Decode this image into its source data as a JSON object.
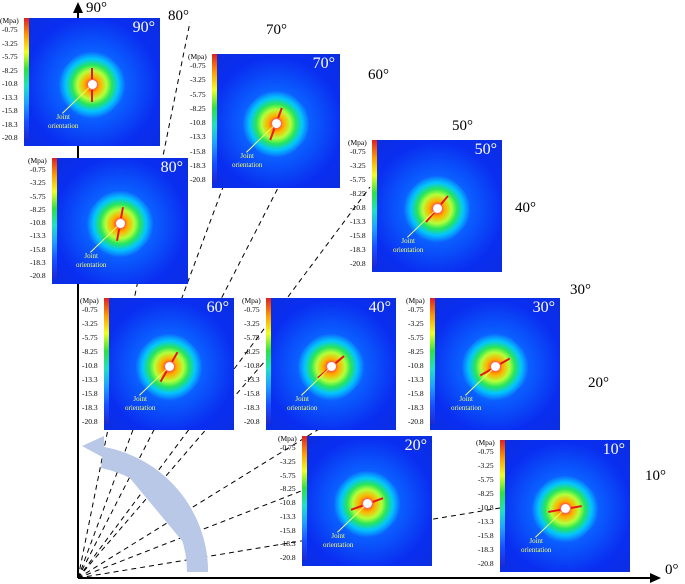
{
  "colorbar": {
    "unit": "(Mpa)",
    "ticks": [
      "-0.75",
      "-3.25",
      "-5.75",
      "-8.25",
      "-10.8",
      "-13.3",
      "-15.8",
      "-18.3",
      "-20.8"
    ]
  },
  "callout_text": "Joint\norientation",
  "panels": [
    {
      "title": "90°",
      "joint_angle_deg": 90
    },
    {
      "title": "80°",
      "joint_angle_deg": 80
    },
    {
      "title": "70°",
      "joint_angle_deg": 70
    },
    {
      "title": "60°",
      "joint_angle_deg": 60
    },
    {
      "title": "50°",
      "joint_angle_deg": 50
    },
    {
      "title": "40°",
      "joint_angle_deg": 40
    },
    {
      "title": "30°",
      "joint_angle_deg": 30
    },
    {
      "title": "20°",
      "joint_angle_deg": 20
    },
    {
      "title": "10°",
      "joint_angle_deg": 10
    }
  ],
  "axes": {
    "x_label": "0°",
    "y_label": "90°"
  },
  "ray_labels": [
    "10°",
    "20°",
    "30°",
    "40°",
    "50°",
    "60°",
    "70°",
    "80°"
  ],
  "colors": {
    "axis": "#000000",
    "joint_line": "#e8151b",
    "callout": "#f4ff6a",
    "rotation_arrow": "#b8c8e6"
  }
}
